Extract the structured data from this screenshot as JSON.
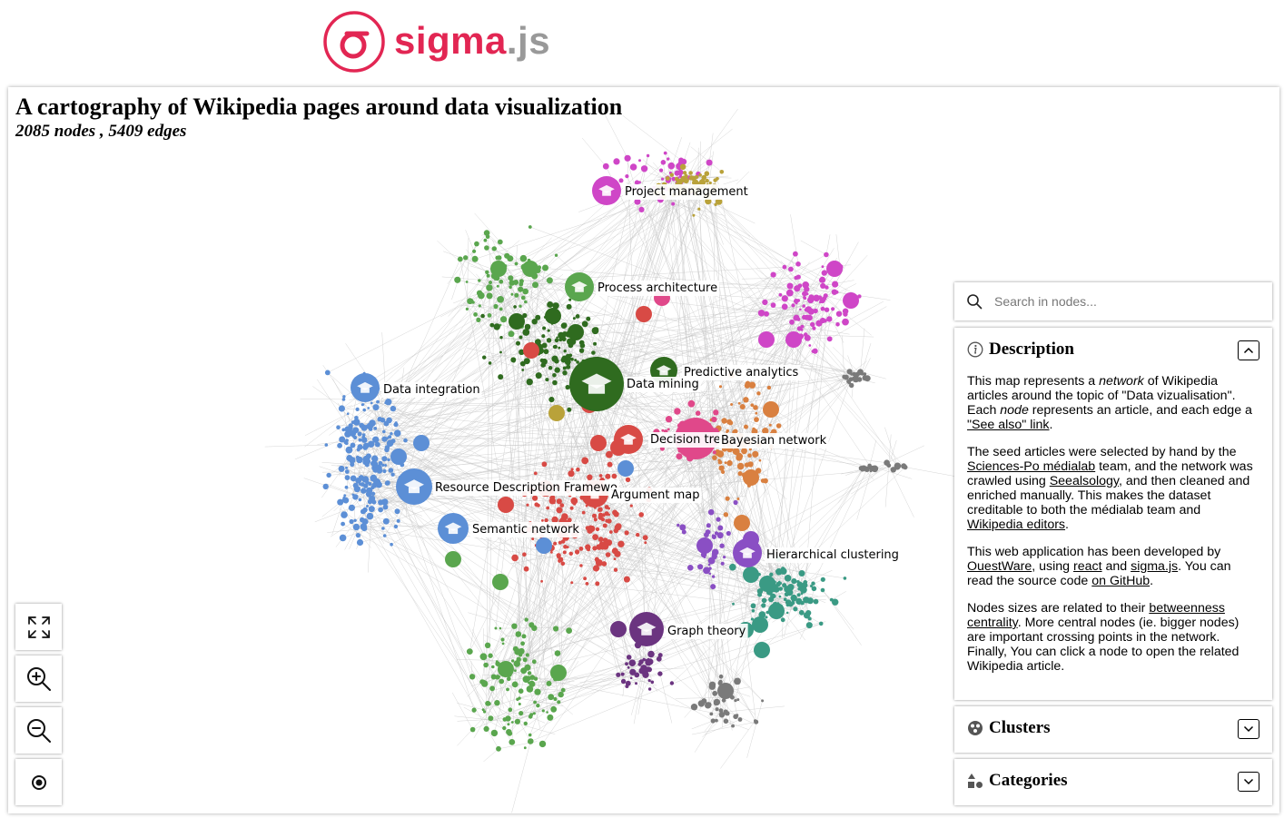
{
  "logo": {
    "main": "sigma",
    "dot": ".js"
  },
  "header": {
    "title": "A cartography of Wikipedia pages around data visualization",
    "subtitle": "2085 nodes , 5409 edges"
  },
  "controls": {
    "fullscreen_icon": "fullscreen-icon",
    "zoom_in_icon": "zoom-in-icon",
    "zoom_out_icon": "zoom-out-icon",
    "reset_icon": "reset-view-icon"
  },
  "search": {
    "placeholder": "Search in nodes..."
  },
  "description": {
    "title": "Description",
    "p1": {
      "t1": "This map represents a ",
      "em1": "network",
      "t2": " of Wikipedia articles around the topic of \"Data vizualisation\". Each ",
      "em2": "node",
      "t3": " represents an article, and each edge a ",
      "link1": "\"See also\" link",
      "t4": "."
    },
    "p2": {
      "t1": "The seed articles were selected by hand by the ",
      "link1": "Sciences-Po médialab",
      "t2": " team, and the network was crawled using ",
      "link2": "Seealsology",
      "t3": ", and then cleaned and enriched manually. This makes the dataset creditable to both the médialab team and ",
      "link3": "Wikipedia editors",
      "t4": "."
    },
    "p3": {
      "t1": "This web application has been developed by ",
      "link1": "OuestWare",
      "t2": ", using ",
      "link2": "react",
      "t3": " and ",
      "link3": "sigma.js",
      "t4": ". You can read the source code ",
      "link4": "on GitHub",
      "t5": "."
    },
    "p4": {
      "t1": "Nodes sizes are related to their ",
      "link1": "betweenness centrality",
      "t2": ". More central nodes (ie. bigger nodes) are important crossing points in the network. Finally, You can click a node to open the related Wikipedia article."
    }
  },
  "clusters": {
    "title": "Clusters"
  },
  "categories": {
    "title": "Categories"
  },
  "colors": {
    "brand": "#e22653",
    "edge": "#c8c8c8",
    "clusters": [
      "#5c8fd6",
      "#5aa64e",
      "#2f6b1f",
      "#d84a45",
      "#cf46c7",
      "#b9a23a",
      "#d98040",
      "#3a9a84",
      "#8a4fc4",
      "#6b3480",
      "#7a7a7a",
      "#e0488a"
    ]
  },
  "graph_labels": [
    {
      "id": "project-management",
      "text": "Project management"
    },
    {
      "id": "process-architecture",
      "text": "Process architecture"
    },
    {
      "id": "predictive-analytics",
      "text": "Predictive analytics"
    },
    {
      "id": "data-integration",
      "text": "Data integration"
    },
    {
      "id": "data-mining",
      "text": "Data mining"
    },
    {
      "id": "decision-tree",
      "text": "Decision tre"
    },
    {
      "id": "bayesian-network",
      "text": "Bayesian network"
    },
    {
      "id": "resource-description-framework",
      "text": "Resource Description Framewo"
    },
    {
      "id": "argument-map",
      "text": "Argument map"
    },
    {
      "id": "semantic-network",
      "text": "Semantic network"
    },
    {
      "id": "hierarchical-clustering",
      "text": "Hierarchical clustering"
    },
    {
      "id": "graph-theory",
      "text": "Graph theory"
    }
  ]
}
